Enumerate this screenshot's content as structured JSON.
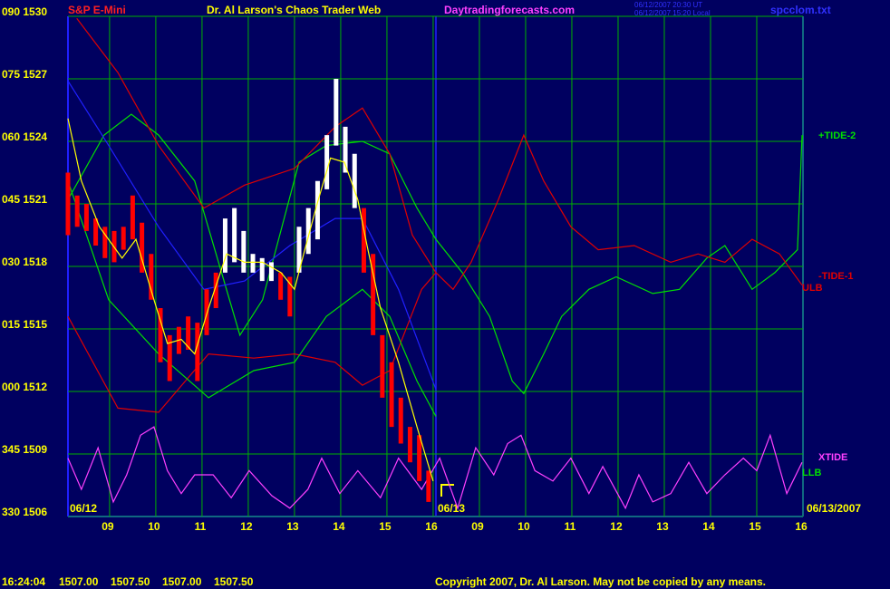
{
  "chart_data": {
    "type": "line",
    "instrument": "S&P E-Mini",
    "title": "Dr. Al Larson's Chaos Trader Web",
    "site": "Daytradingforecasts.com",
    "timestamps": [
      "06/12/2007 20:30 UT",
      "06/12/2007 15:20 Local"
    ],
    "file": "spcclom.txt",
    "dates": [
      "06/12",
      "06/13",
      "06/13/2007"
    ],
    "clock": "16:24:04",
    "quote": {
      "values": [
        1507,
        1507.5,
        1507,
        1507.5
      ],
      "value_labels": [
        "1507.00",
        "1507.50",
        "1507.00",
        "1507.50"
      ]
    },
    "copyright": "Copyright 2007, Dr. Al Larson. May not be copied by any means.",
    "grid": true,
    "xlim": [
      8.1,
      24.0
    ],
    "ylim": [
      1506,
      1530
    ],
    "xticks": [
      {
        "value": 9,
        "label": "09"
      },
      10,
      11,
      12,
      13,
      14,
      15,
      16,
      {
        "value": 17,
        "label": "09"
      },
      {
        "value": 18,
        "label": "10"
      },
      {
        "value": 19,
        "label": "11"
      },
      {
        "value": 20,
        "label": "12"
      },
      {
        "value": 21,
        "label": "13"
      },
      {
        "value": 22,
        "label": "14"
      },
      {
        "value": 23,
        "label": "15"
      },
      {
        "value": 24,
        "label": "16"
      }
    ],
    "yticks": [
      {
        "value": 1506,
        "label": "330 1506"
      },
      {
        "value": 1509,
        "label": "345 1509"
      },
      {
        "value": 1512,
        "label": "000 1512"
      },
      {
        "value": 1515,
        "label": "015 1515"
      },
      {
        "value": 1518,
        "label": "030 1518"
      },
      {
        "value": 1521,
        "label": "045 1521"
      },
      {
        "value": 1524,
        "label": "060 1524"
      },
      {
        "value": 1527,
        "label": "075 1527"
      },
      {
        "value": 1530,
        "label": "090 1530"
      }
    ],
    "series": [
      {
        "name": "+TIDE-2",
        "color": "#00e000",
        "x": [
          8.1,
          8.88,
          9.47,
          10.06,
          10.84,
          11.82,
          12.31,
          13.1,
          13.69,
          14.47,
          15.06,
          15.65,
          16.06,
          16.63,
          17.22,
          17.71,
          17.96,
          18.39,
          18.78,
          19.37,
          19.96,
          20.75,
          21.33,
          21.92,
          22.31,
          22.9,
          23.39,
          23.88,
          23.98
        ],
        "values": [
          1521.2,
          1524.3,
          1525.3,
          1524.3,
          1522.1,
          1514.7,
          1516.4,
          1523.0,
          1523.8,
          1524.0,
          1523.4,
          1520.8,
          1519.3,
          1517.7,
          1515.6,
          1512.5,
          1511.9,
          1513.8,
          1515.6,
          1516.9,
          1517.5,
          1516.7,
          1516.9,
          1518.4,
          1519.0,
          1516.9,
          1517.7,
          1518.8,
          1524.3
        ]
      },
      {
        "name": "-TIDE-1",
        "color": "#e00000",
        "x": [
          8.1,
          9.18,
          10.06,
          11.14,
          12.12,
          13.0,
          13.88,
          14.47,
          15.06,
          15.75,
          16.06,
          16.43,
          16.82,
          17.41,
          17.96,
          18.39,
          18.98,
          19.57,
          20.35,
          21.14,
          21.73,
          22.31,
          22.9,
          23.49,
          23.98
        ],
        "values": [
          1515.6,
          1511.2,
          1511.0,
          1513.8,
          1513.6,
          1513.8,
          1513.4,
          1512.3,
          1513.0,
          1516.9,
          1517.7,
          1516.9,
          1518.2,
          1521.2,
          1524.3,
          1522.1,
          1519.9,
          1518.8,
          1519.0,
          1518.2,
          1518.6,
          1518.2,
          1519.3,
          1518.6,
          1517.1
        ]
      },
      {
        "name": "ULB",
        "color": "#e00000",
        "x": [
          8.29,
          9.18,
          10.06,
          11.04,
          11.92,
          13.0,
          13.88,
          14.47,
          15.06,
          15.55,
          16.06
        ],
        "values": [
          1529.9,
          1527.3,
          1523.8,
          1520.8,
          1521.9,
          1522.7,
          1524.7,
          1525.6,
          1523.4,
          1519.5,
          1517.7
        ]
      },
      {
        "name": "XTIDE",
        "color": "#ff40ff",
        "x": [
          8.1,
          8.39,
          8.75,
          9.08,
          9.37,
          9.67,
          9.96,
          10.25,
          10.55,
          10.84,
          11.24,
          11.63,
          12.02,
          12.51,
          12.9,
          13.29,
          13.59,
          13.98,
          14.37,
          14.86,
          15.25,
          15.75,
          16.14,
          16.53,
          16.92,
          17.31,
          17.61,
          17.9,
          18.2,
          18.59,
          18.98,
          19.37,
          19.67,
          20.16,
          20.45,
          20.75,
          21.14,
          21.53,
          21.92,
          22.31,
          22.71,
          23.0,
          23.29,
          23.65,
          23.98
        ],
        "values": [
          1508.8,
          1507.3,
          1509.3,
          1506.7,
          1508.0,
          1509.9,
          1510.3,
          1508.2,
          1507.1,
          1508.0,
          1508.0,
          1506.9,
          1508.2,
          1507.0,
          1506.4,
          1507.3,
          1508.8,
          1507.1,
          1508.2,
          1506.9,
          1508.8,
          1507.3,
          1508.8,
          1506.4,
          1509.3,
          1508.0,
          1509.5,
          1509.9,
          1508.2,
          1507.7,
          1508.8,
          1507.1,
          1508.4,
          1506.4,
          1508.0,
          1506.7,
          1507.1,
          1508.6,
          1507.1,
          1508.0,
          1508.8,
          1508.2,
          1509.9,
          1507.1,
          1508.6
        ]
      },
      {
        "name": "LLB",
        "color": "#00e000",
        "x": [
          8.1,
          8.98,
          10.06,
          11.14,
          12.12,
          13.0,
          13.69,
          14.47,
          15.06,
          15.65,
          16.06
        ],
        "values": [
          1522.1,
          1516.4,
          1513.8,
          1511.7,
          1513.0,
          1513.4,
          1515.6,
          1516.9,
          1515.6,
          1512.5,
          1510.8
        ]
      },
      {
        "color": "#2020ff",
        "x": [
          8.1,
          8.98,
          10.06,
          11.04,
          11.92,
          12.9,
          13.88,
          14.47,
          15.25,
          16.06
        ],
        "values": [
          1526.9,
          1523.8,
          1519.9,
          1516.9,
          1517.3,
          1519.0,
          1520.3,
          1520.3,
          1516.9,
          1512.1
        ]
      },
      {
        "color": "#ffff00",
        "x": [
          8.1,
          8.39,
          8.78,
          9.27,
          9.57,
          9.96,
          10.25,
          10.55,
          10.84,
          11.14,
          11.53,
          11.92,
          12.31,
          12.71,
          13.0,
          13.2,
          13.49,
          13.78,
          14.08,
          14.37,
          14.57,
          14.86,
          15.25,
          15.65,
          16.0
        ],
        "values": [
          1525.1,
          1522.1,
          1519.9,
          1518.4,
          1519.3,
          1516.4,
          1514.3,
          1514.5,
          1513.8,
          1516.0,
          1518.6,
          1518.2,
          1518.2,
          1517.7,
          1516.9,
          1518.6,
          1521.0,
          1523.2,
          1523.0,
          1521.2,
          1519.0,
          1516.0,
          1513.4,
          1510.3,
          1507.7
        ]
      }
    ],
    "bars": {
      "x": [
        8.1,
        8.3,
        8.5,
        8.7,
        8.9,
        9.1,
        9.3,
        9.5,
        9.7,
        9.9,
        10.1,
        10.3,
        10.5,
        10.7,
        10.9,
        11.1,
        11.3,
        11.5,
        11.7,
        11.9,
        12.1,
        12.3,
        12.5,
        12.7,
        12.9,
        13.1,
        13.3,
        13.5,
        13.7,
        13.9,
        14.1,
        14.3,
        14.5,
        14.7,
        14.9,
        15.1,
        15.3,
        15.5,
        15.7,
        15.9
      ],
      "high": [
        1522.5,
        1521.4,
        1521.0,
        1520.3,
        1519.9,
        1519.7,
        1519.9,
        1521.4,
        1520.1,
        1518.6,
        1516.0,
        1514.7,
        1515.1,
        1515.6,
        1515.3,
        1516.9,
        1517.7,
        1520.3,
        1520.8,
        1519.7,
        1518.6,
        1518.4,
        1518.2,
        1517.7,
        1517.5,
        1519.9,
        1520.8,
        1522.1,
        1524.3,
        1527.0,
        1524.7,
        1523.4,
        1520.8,
        1518.6,
        1514.7,
        1513.4,
        1511.7,
        1510.3,
        1509.9,
        1508.2
      ],
      "low": [
        1519.5,
        1519.9,
        1519.7,
        1519.0,
        1518.4,
        1518.2,
        1518.8,
        1519.3,
        1517.7,
        1516.4,
        1513.4,
        1512.5,
        1513.8,
        1514.0,
        1512.5,
        1514.7,
        1516.0,
        1517.7,
        1518.2,
        1517.7,
        1517.7,
        1517.3,
        1517.3,
        1516.4,
        1515.6,
        1517.7,
        1518.6,
        1519.3,
        1521.7,
        1523.8,
        1522.5,
        1520.8,
        1517.7,
        1514.7,
        1511.7,
        1510.3,
        1509.5,
        1508.6,
        1507.7,
        1506.7
      ],
      "colors": [
        "#ff0000",
        "#ff0000",
        "#ff0000",
        "#ff0000",
        "#ff0000",
        "#ff0000",
        "#ff0000",
        "#ff0000",
        "#ff0000",
        "#ff0000",
        "#ff0000",
        "#ff0000",
        "#ff0000",
        "#ff0000",
        "#ff0000",
        "#ff0000",
        "#ff0000",
        "#ffffff",
        "#ffffff",
        "#ffffff",
        "#ffffff",
        "#ffffff",
        "#ffffff",
        "#ff0000",
        "#ff0000",
        "#ffffff",
        "#ffffff",
        "#ffffff",
        "#ffffff",
        "#ffffff",
        "#ffffff",
        "#ffffff",
        "#ff0000",
        "#ff0000",
        "#ff0000",
        "#ff0000",
        "#ff0000",
        "#ff0000",
        "#ff0000",
        "#ff0000"
      ]
    }
  }
}
